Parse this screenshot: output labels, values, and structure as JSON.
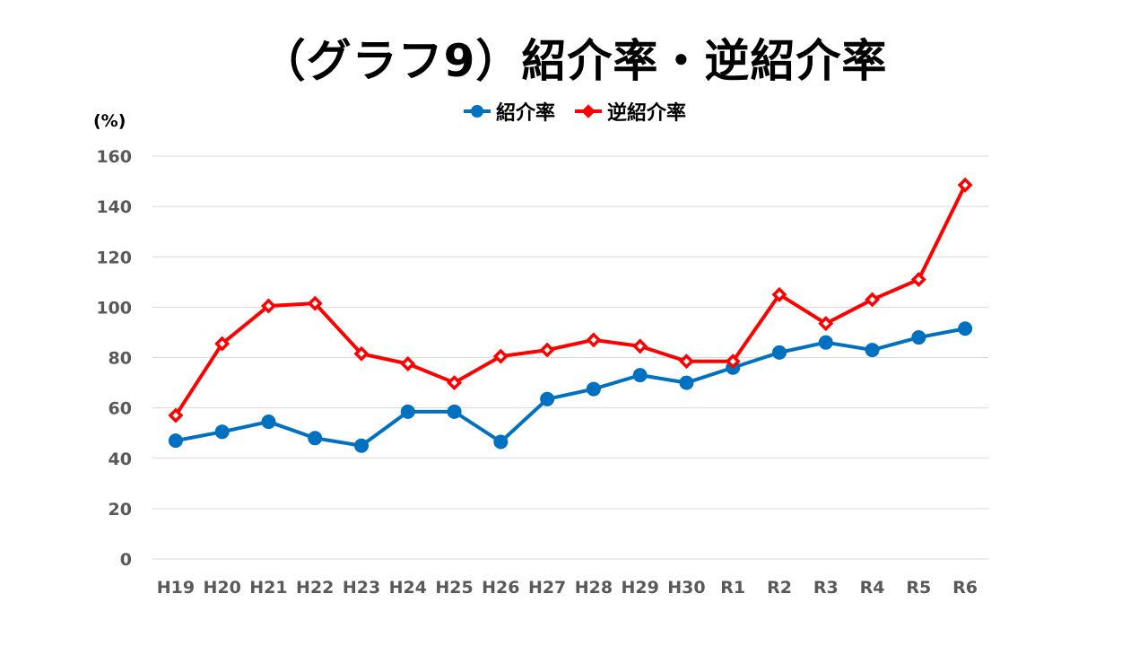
{
  "chart_data": {
    "type": "line",
    "title": "（グラフ9）紹介率・逆紹介率",
    "unit_label": "(%)",
    "categories": [
      "H19",
      "H20",
      "H21",
      "H22",
      "H23",
      "H24",
      "H25",
      "H26",
      "H27",
      "H28",
      "H29",
      "H30",
      "R1",
      "R2",
      "R3",
      "R4",
      "R5",
      "R6"
    ],
    "ylim": [
      0,
      160
    ],
    "yticks": [
      0,
      20,
      40,
      60,
      80,
      100,
      120,
      140,
      160
    ],
    "grid": true,
    "legend_position": "top-center",
    "series": [
      {
        "name": "紹介率",
        "color": "#0070C0",
        "marker": "circle",
        "values": [
          47,
          50.5,
          54.5,
          48,
          45,
          58.5,
          58.5,
          46.5,
          63.5,
          67.5,
          73,
          70,
          76,
          82,
          86,
          83,
          88,
          91.5
        ]
      },
      {
        "name": "逆紹介率",
        "color": "#FF0000",
        "marker": "diamond",
        "values": [
          57,
          85.5,
          100.5,
          101.5,
          81.5,
          77.5,
          70,
          80.5,
          83,
          87,
          84.5,
          78.5,
          78.5,
          105,
          93.5,
          103,
          111,
          148.5
        ]
      }
    ]
  }
}
